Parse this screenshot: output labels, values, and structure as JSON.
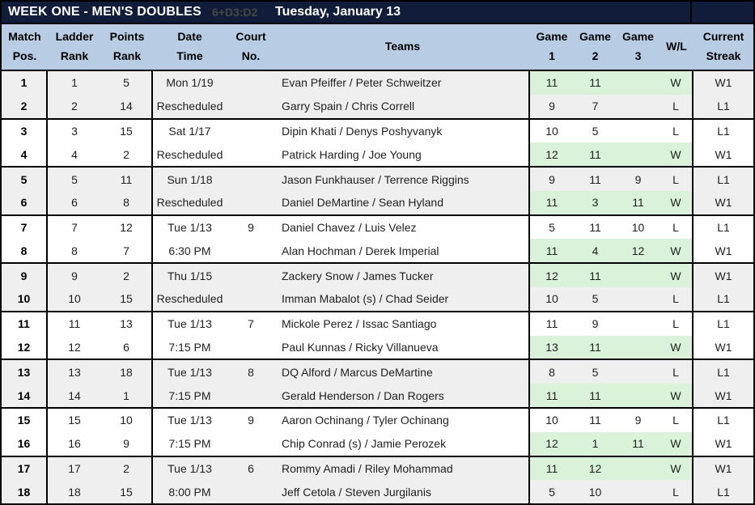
{
  "title_bar": {
    "title": "WEEK ONE - MEN'S DOUBLES",
    "artifact_text": "6+D3:D2",
    "date": "Tuesday, January 13"
  },
  "header": {
    "match": [
      "Match",
      "Pos."
    ],
    "ladder": [
      "Ladder",
      "Rank"
    ],
    "points": [
      "Points",
      "Rank"
    ],
    "date": [
      "Date",
      "Time"
    ],
    "court": [
      "Court",
      "No."
    ],
    "teams": "Teams",
    "game1": [
      "Game",
      "1"
    ],
    "game2": [
      "Game",
      "2"
    ],
    "game3": [
      "Game",
      "3"
    ],
    "wl": "W/L",
    "streak": [
      "Current",
      "Streak"
    ]
  },
  "colors": {
    "navy": "#101c3a",
    "header_blue": "#b8cce4",
    "win_green": "#d9f2d9",
    "row_gray": "#efefef",
    "border": "#000000"
  },
  "groups": [
    {
      "shaded": true,
      "date": "Mon 1/19",
      "time": "Rescheduled",
      "court": "",
      "rows": [
        {
          "match": "1",
          "ladder": "1",
          "points": "5",
          "team": "Evan Pfeiffer / Peter Schweitzer",
          "g1": "11",
          "g2": "11",
          "g3": "",
          "wl": "W",
          "streak": "W1",
          "win": true
        },
        {
          "match": "2",
          "ladder": "2",
          "points": "14",
          "team": "Garry Spain / Chris Correll",
          "g1": "9",
          "g2": "7",
          "g3": "",
          "wl": "L",
          "streak": "L1",
          "win": false
        }
      ]
    },
    {
      "shaded": false,
      "date": "Sat 1/17",
      "time": "Rescheduled",
      "court": "",
      "rows": [
        {
          "match": "3",
          "ladder": "3",
          "points": "15",
          "team": "Dipin Khati / Denys Poshyvanyk",
          "g1": "10",
          "g2": "5",
          "g3": "",
          "wl": "L",
          "streak": "L1",
          "win": false
        },
        {
          "match": "4",
          "ladder": "4",
          "points": "2",
          "team": "Patrick Harding / Joe Young",
          "g1": "12",
          "g2": "11",
          "g3": "",
          "wl": "W",
          "streak": "W1",
          "win": true
        }
      ]
    },
    {
      "shaded": true,
      "date": "Sun 1/18",
      "time": "Rescheduled",
      "court": "",
      "rows": [
        {
          "match": "5",
          "ladder": "5",
          "points": "11",
          "team": "Jason Funkhauser / Terrence Riggins",
          "g1": "9",
          "g2": "11",
          "g3": "9",
          "wl": "L",
          "streak": "L1",
          "win": false
        },
        {
          "match": "6",
          "ladder": "6",
          "points": "8",
          "team": "Daniel DeMartine / Sean Hyland",
          "g1": "11",
          "g2": "3",
          "g3": "11",
          "wl": "W",
          "streak": "W1",
          "win": true
        }
      ]
    },
    {
      "shaded": false,
      "date": "Tue 1/13",
      "time": "6:30 PM",
      "court": "9",
      "rows": [
        {
          "match": "7",
          "ladder": "7",
          "points": "12",
          "team": "Daniel Chavez / Luis Velez",
          "g1": "5",
          "g2": "11",
          "g3": "10",
          "wl": "L",
          "streak": "L1",
          "win": false
        },
        {
          "match": "8",
          "ladder": "8",
          "points": "7",
          "team": "Alan Hochman / Derek Imperial",
          "g1": "11",
          "g2": "4",
          "g3": "12",
          "wl": "W",
          "streak": "W1",
          "win": true
        }
      ]
    },
    {
      "shaded": true,
      "date": "Thu 1/15",
      "time": "Rescheduled",
      "court": "",
      "rows": [
        {
          "match": "9",
          "ladder": "9",
          "points": "2",
          "team": "Zackery Snow / James Tucker",
          "g1": "12",
          "g2": "11",
          "g3": "",
          "wl": "W",
          "streak": "W1",
          "win": true
        },
        {
          "match": "10",
          "ladder": "10",
          "points": "15",
          "team": "Imman Mabalot (s) / Chad Seider",
          "g1": "10",
          "g2": "5",
          "g3": "",
          "wl": "L",
          "streak": "L1",
          "win": false
        }
      ]
    },
    {
      "shaded": false,
      "date": "Tue 1/13",
      "time": "7:15 PM",
      "court": "7",
      "rows": [
        {
          "match": "11",
          "ladder": "11",
          "points": "13",
          "team": "Mickole Perez / Issac Santiago",
          "g1": "11",
          "g2": "9",
          "g3": "",
          "wl": "L",
          "streak": "L1",
          "win": false
        },
        {
          "match": "12",
          "ladder": "12",
          "points": "6",
          "team": "Paul Kunnas / Ricky Villanueva",
          "g1": "13",
          "g2": "11",
          "g3": "",
          "wl": "W",
          "streak": "W1",
          "win": true
        }
      ]
    },
    {
      "shaded": true,
      "date": "Tue 1/13",
      "time": "7:15 PM",
      "court": "8",
      "rows": [
        {
          "match": "13",
          "ladder": "13",
          "points": "18",
          "team": "DQ Alford / Marcus DeMartine",
          "g1": "8",
          "g2": "5",
          "g3": "",
          "wl": "L",
          "streak": "L1",
          "win": false
        },
        {
          "match": "14",
          "ladder": "14",
          "points": "1",
          "team": "Gerald  Henderson / Dan Rogers",
          "g1": "11",
          "g2": "11",
          "g3": "",
          "wl": "W",
          "streak": "W1",
          "win": true
        }
      ]
    },
    {
      "shaded": false,
      "date": "Tue 1/13",
      "time": "7:15 PM",
      "court": "9",
      "rows": [
        {
          "match": "15",
          "ladder": "15",
          "points": "10",
          "team": "Aaron Ochinang / Tyler Ochinang",
          "g1": "10",
          "g2": "11",
          "g3": "9",
          "wl": "L",
          "streak": "L1",
          "win": false
        },
        {
          "match": "16",
          "ladder": "16",
          "points": "9",
          "team": "Chip Conrad (s) / Jamie Perozek",
          "g1": "12",
          "g2": "1",
          "g3": "11",
          "wl": "W",
          "streak": "W1",
          "win": true
        }
      ]
    },
    {
      "shaded": true,
      "date": "Tue 1/13",
      "time": "8:00 PM",
      "court": "6",
      "rows": [
        {
          "match": "17",
          "ladder": "17",
          "points": "2",
          "team": "Rommy Amadi / Riley Mohammad",
          "g1": "11",
          "g2": "12",
          "g3": "",
          "wl": "W",
          "streak": "W1",
          "win": true
        },
        {
          "match": "18",
          "ladder": "18",
          "points": "15",
          "team": "Jeff Cetola / Steven Jurgilanis",
          "g1": "5",
          "g2": "10",
          "g3": "",
          "wl": "L",
          "streak": "L1",
          "win": false
        }
      ]
    }
  ]
}
